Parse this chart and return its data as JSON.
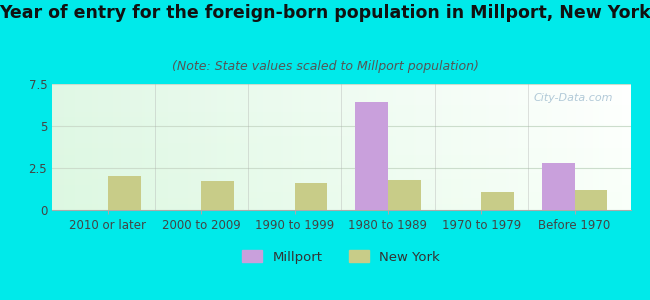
{
  "title": "Year of entry for the foreign-born population in Millport, New York",
  "subtitle": "(Note: State values scaled to Millport population)",
  "categories": [
    "2010 or later",
    "2000 to 2009",
    "1990 to 1999",
    "1980 to 1989",
    "1970 to 1979",
    "Before 1970"
  ],
  "millport_values": [
    0,
    0,
    0,
    6.4,
    0,
    2.8
  ],
  "newyork_values": [
    2.0,
    1.7,
    1.6,
    1.8,
    1.1,
    1.2
  ],
  "millport_color": "#c9a0dc",
  "newyork_color": "#c8cc88",
  "background_color": "#00eaea",
  "ylim": [
    0,
    7.5
  ],
  "yticks": [
    0,
    2.5,
    5,
    7.5
  ],
  "ytick_labels": [
    "0",
    "2.5",
    "5",
    "7.5"
  ],
  "bar_width": 0.35,
  "title_fontsize": 12.5,
  "subtitle_fontsize": 9,
  "tick_fontsize": 8.5,
  "legend_fontsize": 9.5,
  "watermark_text": "City-Data.com",
  "watermark_color": "#99b8cc",
  "grid_color": "#ccddcc",
  "spine_color": "#aaaaaa"
}
